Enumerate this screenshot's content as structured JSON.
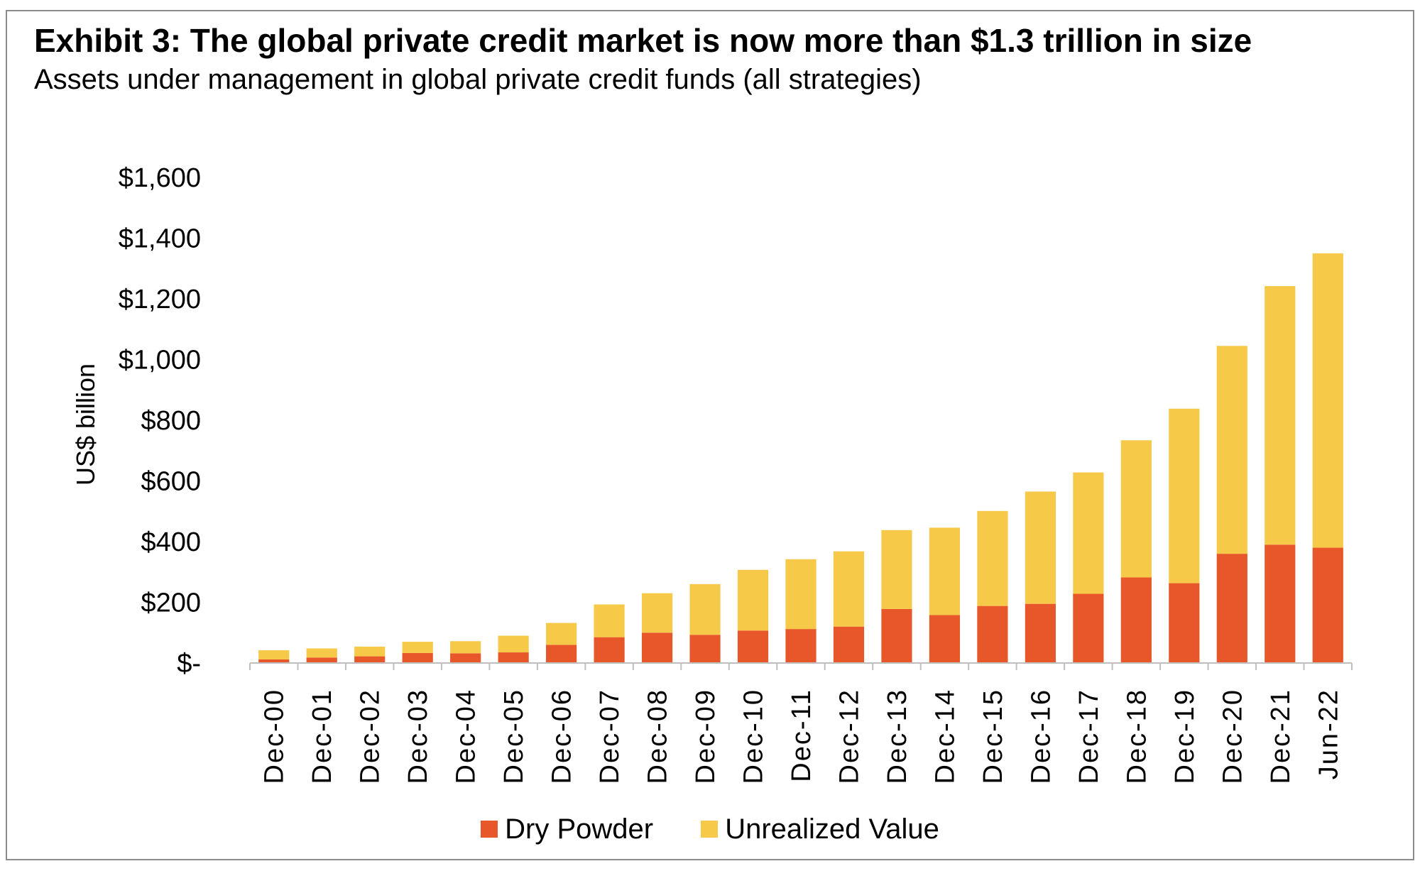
{
  "title": "Exhibit 3: The global private credit market is now more than $1.3 trillion in size",
  "subtitle": "Assets under management in global private credit funds (all strategies)",
  "colors": {
    "dry_powder": "#e8572a",
    "unrealized_value": "#f7c948"
  },
  "chart_data": {
    "type": "bar",
    "stacked": true,
    "title": "Exhibit 3: The global private credit market is now more than $1.3 trillion in size",
    "subtitle": "Assets under management in global private credit funds (all strategies)",
    "xlabel": "",
    "ylabel": "US$ billion",
    "ylim": [
      0,
      1600
    ],
    "yticks": [
      0,
      200,
      400,
      600,
      800,
      1000,
      1200,
      1400,
      1600
    ],
    "ytick_labels": [
      "$-",
      "$200",
      "$400",
      "$600",
      "$800",
      "$1,000",
      "$1,200",
      "$1,400",
      "$1,600"
    ],
    "grid": false,
    "legend_position": "bottom",
    "categories": [
      "Dec-00",
      "Dec-01",
      "Dec-02",
      "Dec-03",
      "Dec-04",
      "Dec-05",
      "Dec-06",
      "Dec-07",
      "Dec-08",
      "Dec-09",
      "Dec-10",
      "Dec-11",
      "Dec-12",
      "Dec-13",
      "Dec-14",
      "Dec-15",
      "Dec-16",
      "Dec-17",
      "Dec-18",
      "Dec-19",
      "Dec-20",
      "Dec-21",
      "Jun-22"
    ],
    "series": [
      {
        "name": "Dry Powder",
        "color": "#e8572a",
        "values": [
          12,
          18,
          22,
          33,
          32,
          35,
          60,
          85,
          100,
          93,
          107,
          112,
          120,
          178,
          158,
          188,
          195,
          228,
          282,
          263,
          360,
          390,
          380
        ]
      },
      {
        "name": "Unrealized Value",
        "color": "#f7c948",
        "values": [
          30,
          30,
          32,
          37,
          40,
          55,
          72,
          108,
          130,
          167,
          200,
          230,
          248,
          260,
          288,
          313,
          370,
          400,
          452,
          575,
          685,
          852,
          970
        ]
      }
    ]
  }
}
